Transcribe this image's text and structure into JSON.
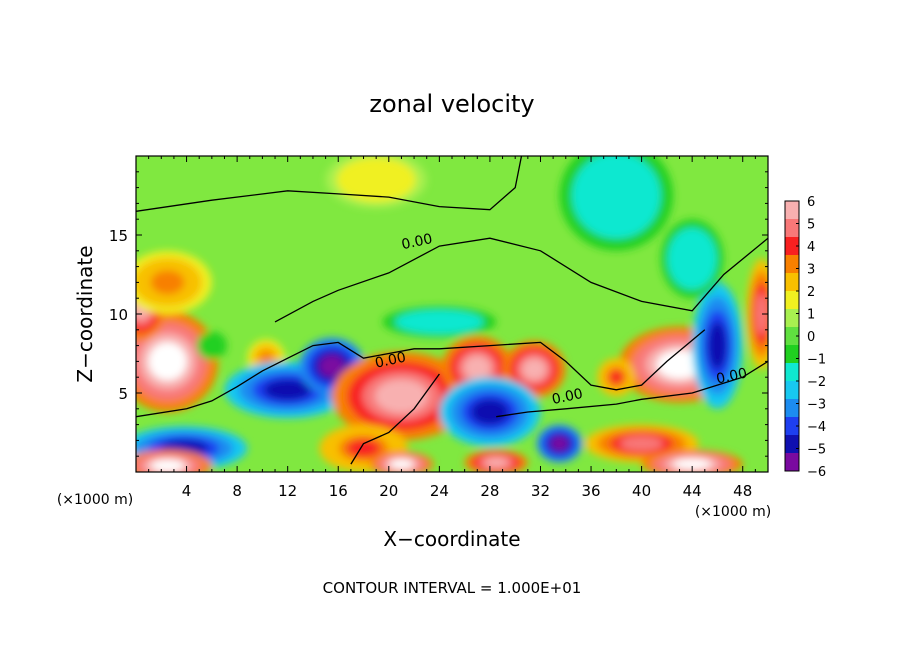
{
  "chart_data": {
    "type": "heatmap",
    "title": "zonal velocity",
    "xlabel": "X−coordinate",
    "ylabel": "Z−coordinate",
    "x_unit": "(×1000 m)",
    "z_unit": "(×1000 m)",
    "xlim": [
      0,
      50
    ],
    "ylim": [
      0,
      20
    ],
    "x_ticks": [
      "4",
      "8",
      "12",
      "16",
      "20",
      "24",
      "28",
      "32",
      "36",
      "40",
      "44",
      "48"
    ],
    "y_ticks": [
      "5",
      "10",
      "15"
    ],
    "colorbar": {
      "ticks": [
        "6",
        "5",
        "4",
        "3",
        "2",
        "1",
        "0",
        "−1",
        "−2",
        "−3",
        "−4",
        "−5",
        "−6"
      ],
      "min": -6,
      "max": 6,
      "colors": [
        "#7a0aa0",
        "#1010b0",
        "#1e3ff0",
        "#1c8cf0",
        "#18c8f0",
        "#10e8d0",
        "#20d020",
        "#60e040",
        "#a8f050",
        "#f0f020",
        "#f8c000",
        "#f88000",
        "#f82020",
        "#f87878",
        "#f8b0b0"
      ]
    },
    "contour_labels": [
      {
        "x": 22.3,
        "z": 14.3,
        "text": "0.00"
      },
      {
        "x": 20.2,
        "z": 6.8,
        "text": "0.00"
      },
      {
        "x": 34.2,
        "z": 4.5,
        "text": "0.00"
      },
      {
        "x": 47.2,
        "z": 5.8,
        "text": "0.00"
      }
    ],
    "anomalies": [
      {
        "x": 2.5,
        "z": 7.0,
        "rx": 4.0,
        "rz": 3.2,
        "v": 7
      },
      {
        "x": 0.4,
        "z": 10.5,
        "rx": 2.0,
        "rz": 2.2,
        "v": 6
      },
      {
        "x": 2.5,
        "z": 12.0,
        "rx": 3.5,
        "rz": 2.0,
        "v": 3
      },
      {
        "x": 10.3,
        "z": 7.2,
        "rx": 1.5,
        "rz": 1.2,
        "v": 3
      },
      {
        "x": 6.0,
        "z": 8.0,
        "rx": 1.2,
        "rz": 0.9,
        "v": -1
      },
      {
        "x": 12.0,
        "z": 5.2,
        "rx": 5.0,
        "rz": 1.8,
        "v": -5
      },
      {
        "x": 15.5,
        "z": 6.7,
        "rx": 2.6,
        "rz": 1.8,
        "v": -6
      },
      {
        "x": 21.0,
        "z": 4.8,
        "rx": 5.5,
        "rz": 2.8,
        "v": 6
      },
      {
        "x": 27.0,
        "z": 6.6,
        "rx": 2.8,
        "rz": 2.0,
        "v": 6
      },
      {
        "x": 31.5,
        "z": 6.5,
        "rx": 2.5,
        "rz": 1.8,
        "v": 6
      },
      {
        "x": 28.0,
        "z": 3.8,
        "rx": 4.0,
        "rz": 2.2,
        "v": -5
      },
      {
        "x": 33.5,
        "z": 1.8,
        "rx": 1.8,
        "rz": 1.2,
        "v": -6
      },
      {
        "x": 43.0,
        "z": 6.8,
        "rx": 4.8,
        "rz": 2.4,
        "v": 7
      },
      {
        "x": 46.0,
        "z": 8.0,
        "rx": 2.0,
        "rz": 4.0,
        "v": -5
      },
      {
        "x": 38.0,
        "z": 6.0,
        "rx": 1.5,
        "rz": 1.2,
        "v": 4
      },
      {
        "x": 3.8,
        "z": 1.5,
        "rx": 5.0,
        "rz": 1.4,
        "v": -5
      },
      {
        "x": 2.5,
        "z": 0.4,
        "rx": 3.5,
        "rz": 1.0,
        "v": 7
      },
      {
        "x": 18.0,
        "z": 1.5,
        "rx": 3.5,
        "rz": 1.5,
        "v": 4
      },
      {
        "x": 21.0,
        "z": 0.5,
        "rx": 2.5,
        "rz": 0.8,
        "v": 7
      },
      {
        "x": 28.5,
        "z": 0.6,
        "rx": 2.5,
        "rz": 0.8,
        "v": 6
      },
      {
        "x": 40.0,
        "z": 1.8,
        "rx": 4.5,
        "rz": 1.2,
        "v": 5
      },
      {
        "x": 44.0,
        "z": 0.5,
        "rx": 4.0,
        "rz": 0.9,
        "v": 7
      },
      {
        "x": 49.5,
        "z": 10.0,
        "rx": 1.2,
        "rz": 3.5,
        "v": 5
      },
      {
        "x": 38.0,
        "z": 17.5,
        "rx": 4.5,
        "rz": 3.5,
        "v": -2
      },
      {
        "x": 44.0,
        "z": 13.5,
        "rx": 2.5,
        "rz": 2.5,
        "v": -2
      },
      {
        "x": 24.0,
        "z": 9.5,
        "rx": 4.5,
        "rz": 1.0,
        "v": -2
      },
      {
        "x": 19.0,
        "z": 18.5,
        "rx": 4.0,
        "rz": 1.8,
        "v": 1.8
      }
    ],
    "zero_contours": [
      [
        [
          0,
          16.5
        ],
        [
          6,
          17.2
        ],
        [
          12,
          17.8
        ],
        [
          16,
          17.6
        ],
        [
          20,
          17.4
        ],
        [
          24,
          16.8
        ],
        [
          28,
          16.6
        ],
        [
          30,
          18
        ],
        [
          30.5,
          20
        ]
      ],
      [
        [
          11,
          9.5
        ],
        [
          14,
          10.8
        ],
        [
          16,
          11.5
        ],
        [
          20,
          12.6
        ],
        [
          24,
          14.3
        ],
        [
          28,
          14.8
        ],
        [
          32,
          14.0
        ],
        [
          36,
          12.0
        ],
        [
          40,
          10.8
        ],
        [
          44,
          10.2
        ],
        [
          46.5,
          12.5
        ],
        [
          50,
          14.8
        ]
      ],
      [
        [
          0,
          3.5
        ],
        [
          4,
          4.0
        ],
        [
          6,
          4.5
        ],
        [
          8,
          5.4
        ],
        [
          10,
          6.4
        ],
        [
          12,
          7.2
        ],
        [
          14,
          8.0
        ],
        [
          16,
          8.2
        ],
        [
          18,
          7.2
        ],
        [
          20,
          7.5
        ],
        [
          22,
          7.8
        ],
        [
          24,
          7.8
        ],
        [
          28,
          8.0
        ],
        [
          32,
          8.2
        ],
        [
          34,
          7.0
        ],
        [
          36,
          5.5
        ],
        [
          38,
          5.2
        ],
        [
          40,
          5.5
        ],
        [
          42,
          7.0
        ],
        [
          45,
          9.0
        ]
      ],
      [
        [
          24,
          6.2
        ],
        [
          22,
          4.0
        ],
        [
          20,
          2.5
        ],
        [
          18,
          1.8
        ],
        [
          17,
          0.5
        ]
      ],
      [
        [
          28.5,
          3.5
        ],
        [
          31,
          3.8
        ],
        [
          34,
          4.0
        ],
        [
          38,
          4.3
        ],
        [
          40,
          4.6
        ],
        [
          44,
          5.0
        ],
        [
          48,
          6.0
        ],
        [
          50,
          7.0
        ]
      ]
    ]
  }
}
